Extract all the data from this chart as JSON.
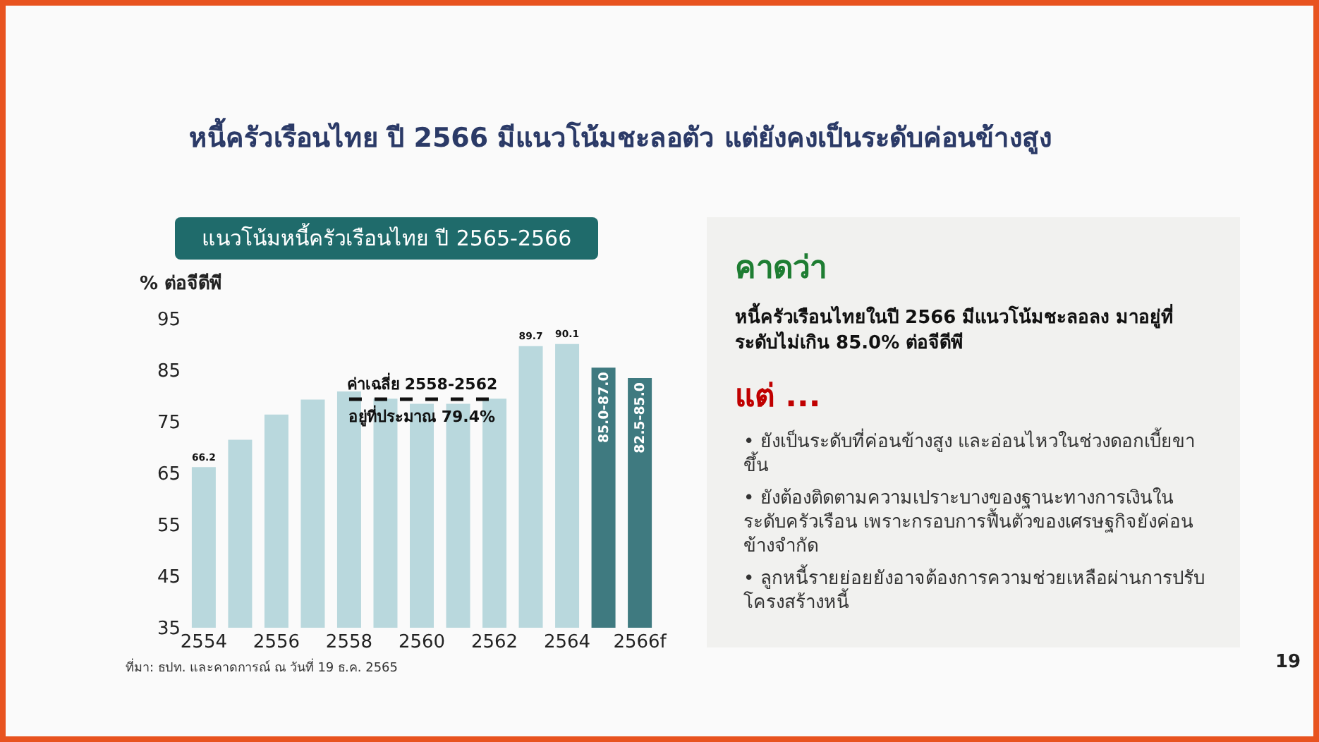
{
  "chart_data": [
    {
      "type": "bar",
      "title": "หนี้ครัวเรือนไทย ปี 2566 มีแนวโน้มชะลอตัว แต่ยังคงเป็นระดับค่อนข้างสูง",
      "subtitle": "แนวโน้มหนี้ครัวเรือนไทย ปี 2565-2566",
      "ylabel": "% ต่อจีดีพี",
      "categories": [
        "2554",
        null,
        "2556",
        null,
        "2558",
        null,
        "2560",
        null,
        "2562",
        null,
        "2564",
        null,
        "2566f"
      ],
      "values": [
        66.2,
        71.5,
        76.4,
        79.3,
        80.9,
        79.5,
        78.5,
        78.5,
        79.5,
        89.7,
        90.1,
        85.5,
        83.5
      ],
      "value_labels": [
        "66.2",
        null,
        null,
        null,
        null,
        null,
        null,
        null,
        null,
        "89.7",
        "90.1",
        "85.0-87.0",
        "82.5-85.0"
      ],
      "colors": [
        "#b9d8dd",
        "#b9d8dd",
        "#b9d8dd",
        "#b9d8dd",
        "#b9d8dd",
        "#b9d8dd",
        "#b9d8dd",
        "#b9d8dd",
        "#b9d8dd",
        "#b9d8dd",
        "#b9d8dd",
        "#3f7a80",
        "#3f7a80"
      ],
      "series": [
        {
          "type": "line",
          "values": [
            null,
            null,
            null,
            null,
            79.4,
            79.4,
            79.4,
            79.4,
            79.4,
            null,
            null,
            null,
            null
          ],
          "color": "#111111",
          "line_style": "dashed"
        }
      ],
      "ylim": [
        35,
        95
      ],
      "yticks": [
        35,
        45,
        55,
        65,
        75,
        85,
        95
      ],
      "grid": false,
      "annotations": [
        {
          "text": "ค่าเฉลี่ย 2558-2562",
          "x": "2560",
          "y": 79.4
        },
        {
          "text": "อยู่ที่ประมาณ 79.4%",
          "x": "2560",
          "y": 79.4
        },
        "ที่มา: ธปท. และคาดการณ์ ณ วันที่ 19 ธ.ค. 2565",
        "19"
      ]
    },
    {
      "type": "other",
      "title": "คาดว่า",
      "subtitle": "หนี้ครัวเรือนไทยในปี 2566 มีแนวโน้มชะลอลง มาอยู่ที่ระดับไม่เกิน 85.0% ต่อจีดีพี",
      "annotations": [
        "แต่ ...",
        "• ยังเป็นระดับที่ค่อนข้างสูง และอ่อนไหวในช่วงดอกเบี้ยขาขึ้น",
        "• ยังต้องติดตามความเปราะบางของฐานะทางการเงินในระดับครัวเรือน เพราะกรอบการฟื้นตัวของเศรษฐกิจยังค่อนข้างจำกัด",
        "• ลูกหนี้รายย่อยยังอาจต้องการความช่วยเหลือผ่านการปรับโครงสร้างหนี้"
      ]
    }
  ]
}
